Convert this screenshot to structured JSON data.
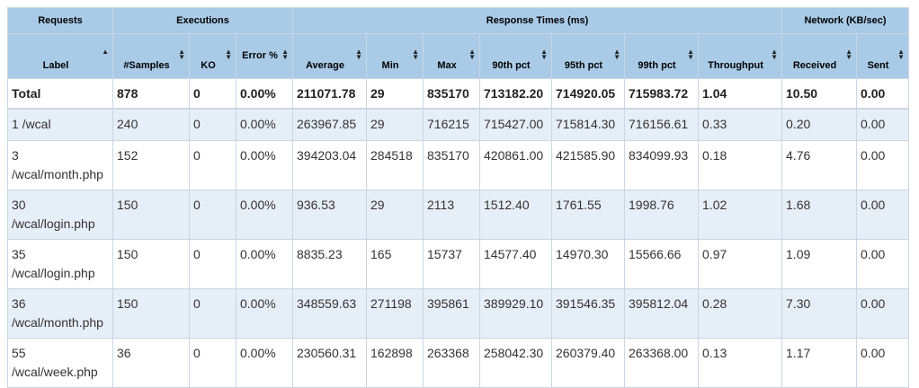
{
  "groups": {
    "requests": "Requests",
    "executions": "Executions",
    "response_times": "Response Times (ms)",
    "network": "Network (KB/sec)"
  },
  "columns": {
    "label": "Label",
    "samples": "#Samples",
    "ko": "KO",
    "error_pct": "Error %",
    "average": "Average",
    "min": "Min",
    "max": "Max",
    "p90": "90th pct",
    "p95": "95th pct",
    "p99": "99th pct",
    "throughput": "Throughput",
    "received": "Received",
    "sent": "Sent"
  },
  "total": {
    "label": "Total",
    "samples": "878",
    "ko": "0",
    "error_pct": "0.00%",
    "average": "211071.78",
    "min": "29",
    "max": "835170",
    "p90": "713182.20",
    "p95": "714920.05",
    "p99": "715983.72",
    "throughput": "1.04",
    "received": "10.50",
    "sent": "0.00"
  },
  "rows": [
    {
      "label": "1 /wcal",
      "samples": "240",
      "ko": "0",
      "error_pct": "0.00%",
      "average": "263967.85",
      "min": "29",
      "max": "716215",
      "p90": "715427.00",
      "p95": "715814.30",
      "p99": "716156.61",
      "throughput": "0.33",
      "received": "0.20",
      "sent": "0.00"
    },
    {
      "label": "3 /wcal/month.php",
      "samples": "152",
      "ko": "0",
      "error_pct": "0.00%",
      "average": "394203.04",
      "min": "284518",
      "max": "835170",
      "p90": "420861.00",
      "p95": "421585.90",
      "p99": "834099.93",
      "throughput": "0.18",
      "received": "4.76",
      "sent": "0.00"
    },
    {
      "label": "30 /wcal/login.php",
      "samples": "150",
      "ko": "0",
      "error_pct": "0.00%",
      "average": "936.53",
      "min": "29",
      "max": "2113",
      "p90": "1512.40",
      "p95": "1761.55",
      "p99": "1998.76",
      "throughput": "1.02",
      "received": "1.68",
      "sent": "0.00"
    },
    {
      "label": "35 /wcal/login.php",
      "samples": "150",
      "ko": "0",
      "error_pct": "0.00%",
      "average": "8835.23",
      "min": "165",
      "max": "15737",
      "p90": "14577.40",
      "p95": "14970.30",
      "p99": "15566.66",
      "throughput": "0.97",
      "received": "1.09",
      "sent": "0.00"
    },
    {
      "label": "36 /wcal/month.php",
      "samples": "150",
      "ko": "0",
      "error_pct": "0.00%",
      "average": "348559.63",
      "min": "271198",
      "max": "395861",
      "p90": "389929.10",
      "p95": "391546.35",
      "p99": "395812.04",
      "throughput": "0.28",
      "received": "7.30",
      "sent": "0.00"
    },
    {
      "label": "55 /wcal/week.php",
      "samples": "36",
      "ko": "0",
      "error_pct": "0.00%",
      "average": "230560.31",
      "min": "162898",
      "max": "263368",
      "p90": "258042.30",
      "p95": "260379.40",
      "p99": "263368.00",
      "throughput": "0.13",
      "received": "1.17",
      "sent": "0.00"
    }
  ]
}
